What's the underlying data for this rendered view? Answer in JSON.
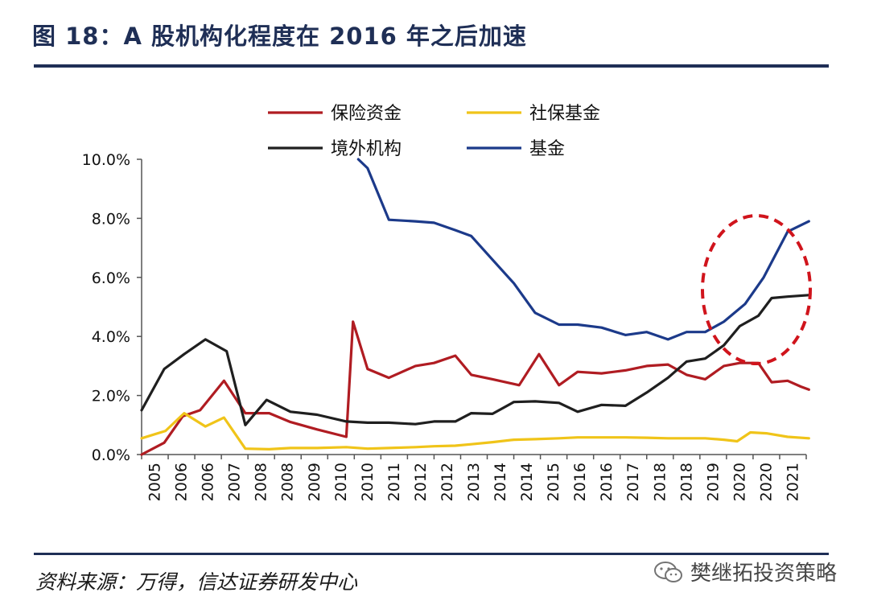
{
  "figure_title": "图 18：A 股机构化程度在 2016 年之后加速",
  "source_note": "资料来源：万得，信达证券研发中心",
  "watermark_text": "樊继拓投资策略",
  "colors": {
    "insurance": "#b01c22",
    "social_security": "#f0c419",
    "foreign": "#1f1f1f",
    "fund": "#1c3a8a",
    "highlight": "#d0141c",
    "title": "#1f2f56"
  },
  "chart_data": {
    "type": "line",
    "x": [
      "2005",
      "2006",
      "2006",
      "2007",
      "2008",
      "2008",
      "2009",
      "2010",
      "2010",
      "2011",
      "2012",
      "2012",
      "2013",
      "2014",
      "2014",
      "2015",
      "2016",
      "2016",
      "2017",
      "2018",
      "2018",
      "2019",
      "2020",
      "2020",
      "2021"
    ],
    "y_ticks": [
      "0.0%",
      "2.0%",
      "4.0%",
      "6.0%",
      "8.0%",
      "10.0%"
    ],
    "ylim": [
      0,
      10
    ],
    "grid": false,
    "legend": "top",
    "series": [
      {
        "name": "保险资金",
        "color_key": "insurance",
        "points": [
          [
            0.0,
            0.0
          ],
          [
            0.85,
            0.4
          ],
          [
            1.55,
            1.3
          ],
          [
            2.2,
            1.5
          ],
          [
            3.1,
            2.5
          ],
          [
            3.9,
            1.4
          ],
          [
            4.8,
            1.4
          ],
          [
            5.6,
            1.1
          ],
          [
            6.6,
            0.85
          ],
          [
            7.7,
            0.6
          ],
          [
            7.95,
            4.5
          ],
          [
            8.5,
            2.9
          ],
          [
            9.3,
            2.6
          ],
          [
            10.3,
            3.0
          ],
          [
            11.0,
            3.1
          ],
          [
            11.8,
            3.35
          ],
          [
            12.4,
            2.7
          ],
          [
            13.2,
            2.55
          ],
          [
            14.2,
            2.35
          ],
          [
            14.95,
            3.4
          ],
          [
            15.7,
            2.35
          ],
          [
            16.4,
            2.8
          ],
          [
            17.3,
            2.75
          ],
          [
            18.2,
            2.85
          ],
          [
            19.0,
            3.0
          ],
          [
            19.8,
            3.05
          ],
          [
            20.5,
            2.7
          ],
          [
            21.2,
            2.55
          ],
          [
            21.9,
            3.0
          ],
          [
            22.5,
            3.1
          ],
          [
            23.2,
            3.1
          ],
          [
            23.7,
            2.45
          ],
          [
            24.3,
            2.5
          ],
          [
            24.8,
            2.3
          ],
          [
            25.1,
            2.2
          ]
        ]
      },
      {
        "name": "社保基金",
        "color_key": "social_security",
        "points": [
          [
            0.0,
            0.55
          ],
          [
            0.9,
            0.8
          ],
          [
            1.6,
            1.4
          ],
          [
            2.4,
            0.95
          ],
          [
            3.1,
            1.25
          ],
          [
            3.9,
            0.2
          ],
          [
            4.8,
            0.18
          ],
          [
            5.6,
            0.22
          ],
          [
            6.6,
            0.22
          ],
          [
            7.7,
            0.25
          ],
          [
            8.5,
            0.2
          ],
          [
            9.3,
            0.22
          ],
          [
            10.3,
            0.25
          ],
          [
            11.0,
            0.28
          ],
          [
            11.8,
            0.3
          ],
          [
            12.4,
            0.35
          ],
          [
            13.2,
            0.42
          ],
          [
            14.0,
            0.5
          ],
          [
            14.8,
            0.52
          ],
          [
            15.7,
            0.55
          ],
          [
            16.4,
            0.58
          ],
          [
            17.3,
            0.58
          ],
          [
            18.2,
            0.58
          ],
          [
            19.0,
            0.57
          ],
          [
            19.8,
            0.55
          ],
          [
            20.5,
            0.55
          ],
          [
            21.2,
            0.55
          ],
          [
            21.9,
            0.5
          ],
          [
            22.4,
            0.45
          ],
          [
            22.9,
            0.75
          ],
          [
            23.5,
            0.72
          ],
          [
            24.3,
            0.6
          ],
          [
            25.1,
            0.55
          ]
        ]
      },
      {
        "name": "境外机构",
        "color_key": "foreign",
        "points": [
          [
            0.0,
            1.5
          ],
          [
            0.85,
            2.9
          ],
          [
            1.6,
            3.4
          ],
          [
            2.4,
            3.9
          ],
          [
            3.2,
            3.5
          ],
          [
            3.9,
            1.0
          ],
          [
            4.7,
            1.85
          ],
          [
            5.6,
            1.45
          ],
          [
            6.6,
            1.35
          ],
          [
            7.7,
            1.12
          ],
          [
            8.5,
            1.08
          ],
          [
            9.3,
            1.08
          ],
          [
            10.3,
            1.03
          ],
          [
            11.0,
            1.12
          ],
          [
            11.8,
            1.12
          ],
          [
            12.4,
            1.4
          ],
          [
            13.2,
            1.38
          ],
          [
            14.0,
            1.78
          ],
          [
            14.8,
            1.8
          ],
          [
            15.7,
            1.75
          ],
          [
            16.4,
            1.45
          ],
          [
            17.3,
            1.68
          ],
          [
            18.2,
            1.65
          ],
          [
            19.0,
            2.1
          ],
          [
            19.8,
            2.6
          ],
          [
            20.5,
            3.15
          ],
          [
            21.2,
            3.25
          ],
          [
            21.9,
            3.7
          ],
          [
            22.5,
            4.35
          ],
          [
            23.2,
            4.7
          ],
          [
            23.7,
            5.3
          ],
          [
            24.3,
            5.35
          ],
          [
            25.1,
            5.4
          ]
        ]
      },
      {
        "name": "基金",
        "color_key": "fund",
        "points": [
          [
            8.15,
            10.0
          ],
          [
            8.5,
            9.7
          ],
          [
            9.3,
            7.95
          ],
          [
            10.3,
            7.9
          ],
          [
            11.0,
            7.85
          ],
          [
            11.8,
            7.6
          ],
          [
            12.4,
            7.4
          ],
          [
            13.2,
            6.6
          ],
          [
            14.0,
            5.8
          ],
          [
            14.8,
            4.8
          ],
          [
            15.7,
            4.4
          ],
          [
            16.4,
            4.4
          ],
          [
            17.3,
            4.3
          ],
          [
            18.2,
            4.05
          ],
          [
            19.0,
            4.15
          ],
          [
            19.8,
            3.9
          ],
          [
            20.5,
            4.15
          ],
          [
            21.2,
            4.15
          ],
          [
            21.9,
            4.5
          ],
          [
            22.7,
            5.1
          ],
          [
            23.4,
            6.0
          ],
          [
            24.3,
            7.55
          ],
          [
            25.1,
            7.9
          ]
        ]
      }
    ]
  }
}
